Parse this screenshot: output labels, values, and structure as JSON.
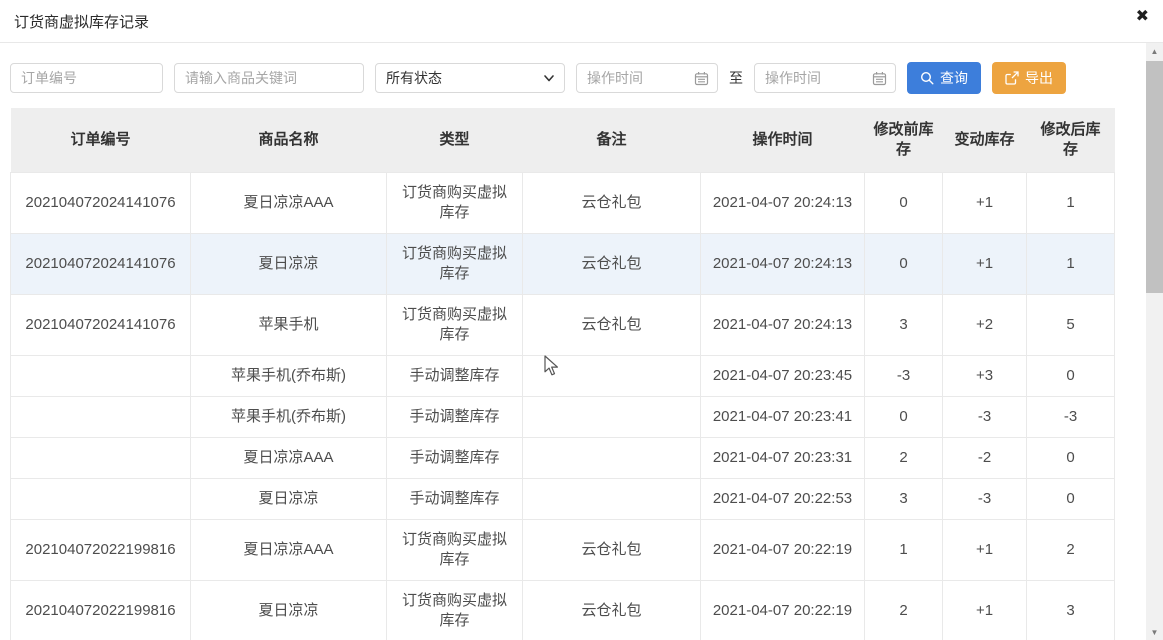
{
  "modal": {
    "title": "订货商虚拟库存记录",
    "close_icon": "✖"
  },
  "filters": {
    "order_no_placeholder": "订单编号",
    "keyword_placeholder": "请输入商品关键词",
    "status_selected": "所有状态",
    "start_time_placeholder": "操作时间",
    "range_separator": "至",
    "end_time_placeholder": "操作时间",
    "search_button_label": "查询",
    "export_button_label": "导出"
  },
  "icons": {
    "close": "close-icon",
    "status_chevron": "chevron-down-icon",
    "calendar": "calendar-icon",
    "search": "search-icon",
    "export": "export-icon",
    "scroll_up_glyph": "▲",
    "scroll_down_glyph": "▼"
  },
  "colors": {
    "search_button": "#3D7EDB",
    "export_button": "#EDA440",
    "header_bg": "#EEEEEE",
    "highlight_row": "#EDF3FA",
    "border": "#E9E9E9"
  },
  "table": {
    "headers": [
      "订单编号",
      "商品名称",
      "类型",
      "备注",
      "操作时间",
      "修改前库存",
      "变动库存",
      "修改后库存"
    ],
    "rows": [
      {
        "order_no": "202104072024141076",
        "product": "夏日凉凉AAA",
        "type": "订货商购买虚拟库存",
        "note": "云仓礼包",
        "time": "2021-04-07 20:24:13",
        "before": "0",
        "change": "+1",
        "after": "1",
        "highlighted": false
      },
      {
        "order_no": "202104072024141076",
        "product": "夏日凉凉",
        "type": "订货商购买虚拟库存",
        "note": "云仓礼包",
        "time": "2021-04-07 20:24:13",
        "before": "0",
        "change": "+1",
        "after": "1",
        "highlighted": true
      },
      {
        "order_no": "202104072024141076",
        "product": "苹果手机",
        "type": "订货商购买虚拟库存",
        "note": "云仓礼包",
        "time": "2021-04-07 20:24:13",
        "before": "3",
        "change": "+2",
        "after": "5",
        "highlighted": false
      },
      {
        "order_no": "",
        "product": "苹果手机(乔布斯)",
        "type": "手动调整库存",
        "note": "",
        "time": "2021-04-07 20:23:45",
        "before": "-3",
        "change": "+3",
        "after": "0",
        "highlighted": false
      },
      {
        "order_no": "",
        "product": "苹果手机(乔布斯)",
        "type": "手动调整库存",
        "note": "",
        "time": "2021-04-07 20:23:41",
        "before": "0",
        "change": "-3",
        "after": "-3",
        "highlighted": false
      },
      {
        "order_no": "",
        "product": "夏日凉凉AAA",
        "type": "手动调整库存",
        "note": "",
        "time": "2021-04-07 20:23:31",
        "before": "2",
        "change": "-2",
        "after": "0",
        "highlighted": false
      },
      {
        "order_no": "",
        "product": "夏日凉凉",
        "type": "手动调整库存",
        "note": "",
        "time": "2021-04-07 20:22:53",
        "before": "3",
        "change": "-3",
        "after": "0",
        "highlighted": false
      },
      {
        "order_no": "202104072022199816",
        "product": "夏日凉凉AAA",
        "type": "订货商购买虚拟库存",
        "note": "云仓礼包",
        "time": "2021-04-07 20:22:19",
        "before": "1",
        "change": "+1",
        "after": "2",
        "highlighted": false
      },
      {
        "order_no": "202104072022199816",
        "product": "夏日凉凉",
        "type": "订货商购买虚拟库存",
        "note": "云仓礼包",
        "time": "2021-04-07 20:22:19",
        "before": "2",
        "change": "+1",
        "after": "3",
        "highlighted": false
      }
    ],
    "partial_row_visible": true
  }
}
